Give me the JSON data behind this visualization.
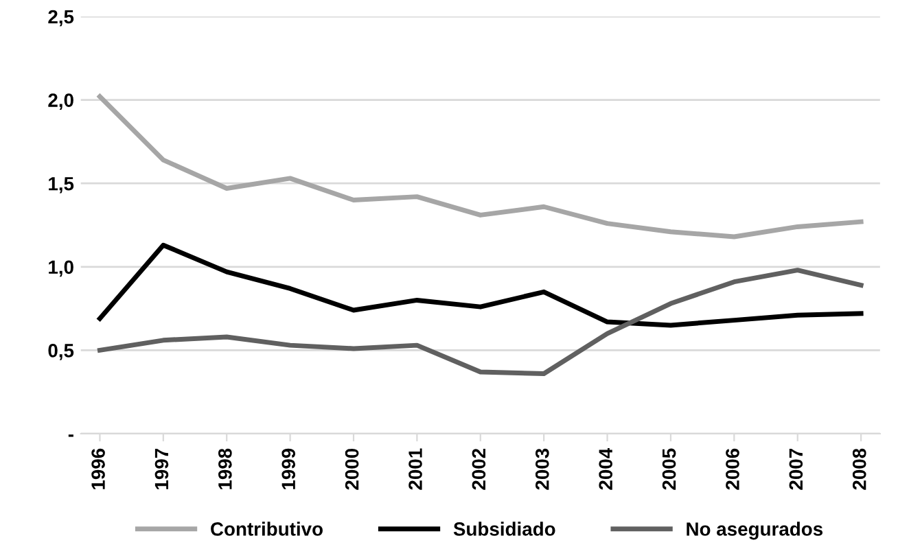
{
  "chart_data": {
    "type": "line",
    "categories": [
      "1996",
      "1997",
      "1998",
      "1999",
      "2000",
      "2001",
      "2002",
      "2003",
      "2004",
      "2005",
      "2006",
      "2007",
      "2008"
    ],
    "series": [
      {
        "name": "Contributivo",
        "color": "#a6a6a6",
        "values": [
          2.02,
          1.64,
          1.47,
          1.53,
          1.4,
          1.42,
          1.31,
          1.36,
          1.26,
          1.21,
          1.18,
          1.24,
          1.27
        ]
      },
      {
        "name": "Subsidiado",
        "color": "#000000",
        "values": [
          0.69,
          1.13,
          0.97,
          0.87,
          0.74,
          0.8,
          0.76,
          0.85,
          0.67,
          0.65,
          0.68,
          0.71,
          0.72
        ]
      },
      {
        "name": "No asegurados",
        "color": "#606060",
        "values": [
          0.5,
          0.56,
          0.58,
          0.53,
          0.51,
          0.53,
          0.37,
          0.36,
          0.6,
          0.78,
          0.91,
          0.98,
          0.89
        ]
      }
    ],
    "ylim": [
      0,
      2.5
    ],
    "yticks": [
      {
        "value": 0,
        "label": "-"
      },
      {
        "value": 0.5,
        "label": "0,5"
      },
      {
        "value": 1.0,
        "label": "1,0"
      },
      {
        "value": 1.5,
        "label": "1,5"
      },
      {
        "value": 2.0,
        "label": "2,0"
      },
      {
        "value": 2.5,
        "label": "2,5"
      }
    ],
    "grid": "y",
    "legend": "bottom",
    "marker": "none",
    "line_style": "solid"
  }
}
